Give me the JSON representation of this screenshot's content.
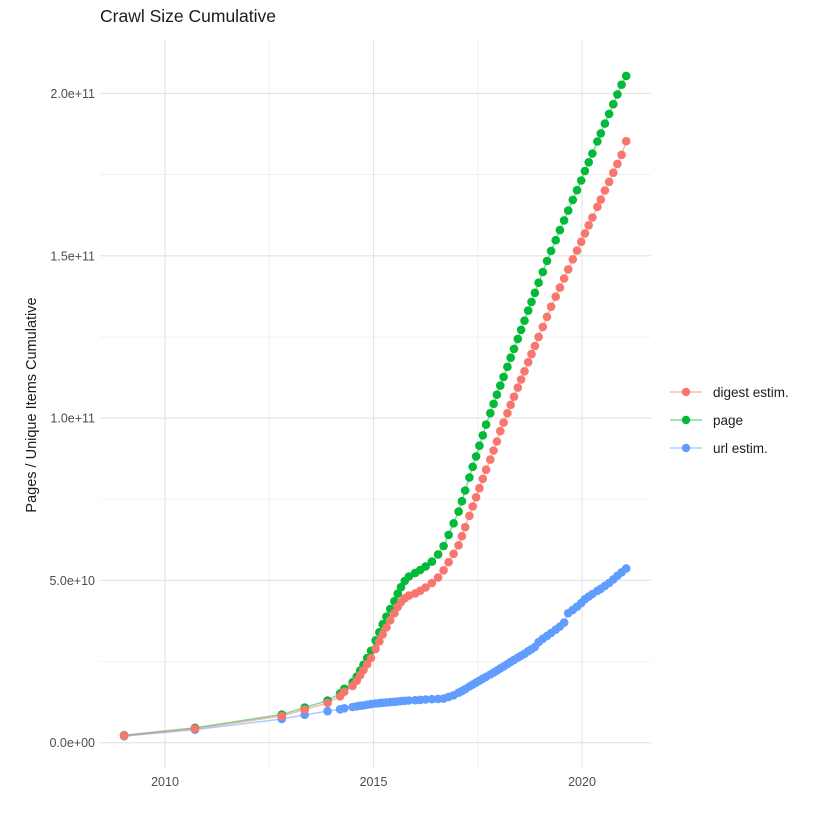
{
  "title": "Crawl Size Cumulative",
  "y_axis": {
    "label": "Pages / Unique Items Cumulative",
    "tick_labels": [
      "0.0e+00",
      "5.0e+10",
      "1.0e+11",
      "1.5e+11",
      "2.0e+11"
    ],
    "tick_values_e9": [
      0,
      50,
      100,
      150,
      200
    ]
  },
  "x_axis": {
    "tick_labels": [
      "2010",
      "2015",
      "2020"
    ],
    "tick_values": [
      2010,
      2015,
      2020
    ]
  },
  "legend": {
    "position": "right",
    "items": [
      {
        "label": "digest estim.",
        "color": "#F8766D"
      },
      {
        "label": "page",
        "color": "#00BA38"
      },
      {
        "label": "url estim.",
        "color": "#619CFF"
      }
    ]
  },
  "colors": {
    "background": "#ffffff",
    "grid_major": "#e3e3e3",
    "grid_minor": "#f1f1f1",
    "tick_text": "#4d4d4d",
    "title_text": "#1c1c1c"
  },
  "chart_data": {
    "type": "line",
    "subtype": "line-with-points",
    "title": "Crawl Size Cumulative",
    "xlabel": "",
    "ylabel": "Pages / Unique Items Cumulative",
    "grid": true,
    "legend_position": "right",
    "xlim": [
      2008.6,
      2021.8
    ],
    "ylim_e9": [
      -12,
      216
    ],
    "x_major_years": [
      2010,
      2015,
      2020
    ],
    "x_minor_years": [
      2012.5,
      2017.5
    ],
    "y_major_e9": [
      0,
      50,
      100,
      150,
      200
    ],
    "y_minor_e9": [
      25,
      75,
      125,
      175
    ],
    "draw_order": [
      "page",
      "url estim.",
      "digest estim."
    ],
    "x_years": [
      2009.02,
      2010.72,
      2012.8,
      2013.35,
      2013.9,
      2014.2,
      2014.3,
      2014.5,
      2014.6,
      2014.68,
      2014.76,
      2014.85,
      2014.94,
      2015.05,
      2015.14,
      2015.22,
      2015.31,
      2015.4,
      2015.5,
      2015.58,
      2015.66,
      2015.75,
      2015.85,
      2016.0,
      2016.12,
      2016.25,
      2016.4,
      2016.55,
      2016.68,
      2016.8,
      2016.92,
      2017.04,
      2017.12,
      2017.2,
      2017.3,
      2017.38,
      2017.46,
      2017.54,
      2017.62,
      2017.7,
      2017.8,
      2017.88,
      2017.96,
      2018.04,
      2018.12,
      2018.21,
      2018.29,
      2018.37,
      2018.46,
      2018.54,
      2018.62,
      2018.71,
      2018.79,
      2018.87,
      2018.96,
      2019.06,
      2019.16,
      2019.26,
      2019.37,
      2019.47,
      2019.57,
      2019.67,
      2019.78,
      2019.88,
      2019.98,
      2020.07,
      2020.16,
      2020.25,
      2020.37,
      2020.45,
      2020.55,
      2020.65,
      2020.75,
      2020.85,
      2020.95,
      2021.06
    ],
    "series": [
      {
        "name": "digest estim.",
        "color": "#F8766D",
        "unit": "1e9 items",
        "values_e9": [
          2.2,
          4.3,
          8.2,
          10.2,
          12.3,
          14.3,
          15.7,
          17.5,
          19.1,
          20.8,
          22.4,
          24.2,
          26.1,
          28.9,
          31.2,
          33.4,
          35.5,
          37.7,
          39.9,
          41.8,
          43.3,
          44.5,
          45.3,
          46.0,
          46.8,
          47.8,
          49.2,
          50.9,
          53.1,
          55.6,
          58.2,
          60.8,
          63.6,
          66.4,
          69.9,
          72.8,
          75.6,
          78.4,
          81.3,
          84.1,
          87.2,
          90.0,
          92.8,
          96.0,
          98.6,
          101.5,
          104.1,
          106.6,
          109.4,
          111.9,
          114.4,
          117.2,
          119.7,
          122.2,
          125.0,
          128.1,
          131.2,
          134.3,
          137.4,
          140.2,
          143.0,
          145.8,
          148.9,
          151.6,
          154.3,
          156.9,
          159.4,
          161.8,
          165.1,
          167.3,
          170.1,
          172.8,
          175.6,
          178.3,
          181.1,
          185.3
        ]
      },
      {
        "name": "page",
        "color": "#00BA38",
        "unit": "1e9 pages",
        "values_e9": [
          2.3,
          4.6,
          8.7,
          10.8,
          13.0,
          15.2,
          16.6,
          18.6,
          20.4,
          22.2,
          24.0,
          26.1,
          28.3,
          31.5,
          34.0,
          36.5,
          38.8,
          41.2,
          43.6,
          45.9,
          47.9,
          49.8,
          51.2,
          52.3,
          53.2,
          54.3,
          55.8,
          58.0,
          60.6,
          64.0,
          67.6,
          71.2,
          74.4,
          77.7,
          81.7,
          85.0,
          88.2,
          91.5,
          94.7,
          98.0,
          101.5,
          104.4,
          107.2,
          110.0,
          112.7,
          115.8,
          118.6,
          121.3,
          124.4,
          127.2,
          130.0,
          133.1,
          135.8,
          138.6,
          141.7,
          145.0,
          148.4,
          151.5,
          154.8,
          157.9,
          160.9,
          163.9,
          167.2,
          170.2,
          173.2,
          176.1,
          178.8,
          181.5,
          185.2,
          187.7,
          190.7,
          193.7,
          196.7,
          199.7,
          202.7,
          205.4
        ]
      },
      {
        "name": "url estim.",
        "color": "#619CFF",
        "unit": "1e9 urls",
        "values_e9": [
          2.0,
          4.0,
          7.3,
          8.6,
          9.7,
          10.3,
          10.6,
          11.0,
          11.2,
          11.4,
          11.5,
          11.7,
          11.9,
          12.1,
          12.2,
          12.3,
          12.4,
          12.5,
          12.6,
          12.7,
          12.8,
          12.9,
          13.0,
          13.1,
          13.2,
          13.3,
          13.4,
          13.5,
          13.6,
          14.1,
          14.6,
          15.4,
          15.9,
          16.5,
          17.3,
          17.9,
          18.5,
          19.1,
          19.7,
          20.3,
          21.0,
          21.6,
          22.2,
          22.9,
          23.5,
          24.2,
          24.9,
          25.5,
          26.2,
          26.8,
          27.4,
          28.2,
          28.8,
          29.5,
          31.0,
          32.0,
          32.9,
          33.8,
          34.8,
          35.8,
          37.0,
          39.9,
          40.9,
          41.9,
          43.0,
          44.2,
          45.0,
          45.8,
          46.8,
          47.4,
          48.3,
          49.2,
          50.3,
          51.4,
          52.5,
          53.7
        ]
      }
    ]
  }
}
